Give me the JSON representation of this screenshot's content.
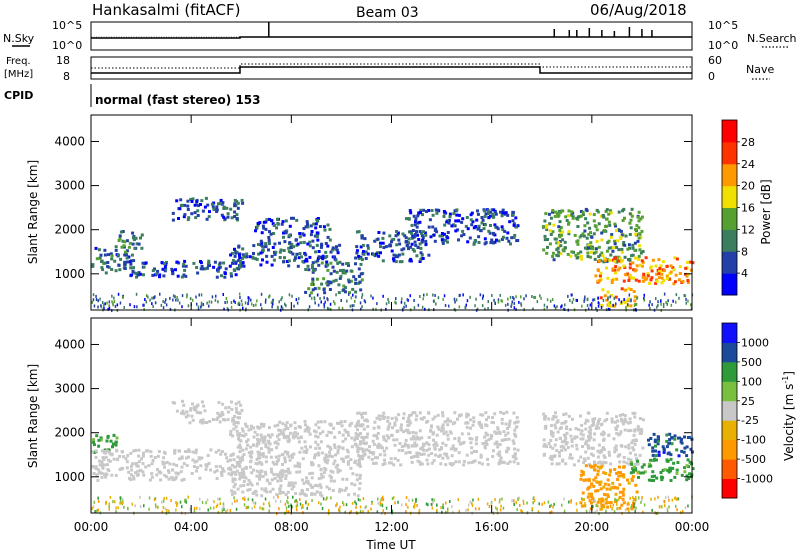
{
  "header": {
    "title": "Hankasalmi (fitACF)",
    "beam": "Beam 03",
    "date": "06/Aug/2018"
  },
  "strips": {
    "nsky_label": "N.Sky",
    "nsearch_label": "N.Search",
    "noise_ticks_left": [
      "10^5",
      "10^0"
    ],
    "noise_ticks_right": [
      "10^5",
      "10^0"
    ],
    "freq_label": "Freq.",
    "freq_unit": "[MHz]",
    "freq_ticks": [
      "18",
      "8"
    ],
    "nave_label": "Nave",
    "nave_ticks": [
      "60",
      "0"
    ],
    "cpid_label": "CPID",
    "cpid_text": "normal (fast stereo) 153"
  },
  "colors": {
    "power_scale": [
      "#0000ff",
      "#2340a8",
      "#3a7d5f",
      "#55a030",
      "#f0e000",
      "#ff9900",
      "#ff3300",
      "#ff0000"
    ],
    "velocity_scale": [
      "#ff0000",
      "#ff5a00",
      "#ff9900",
      "#e8b000",
      "#c8c8c8",
      "#7ac040",
      "#2e9a3a",
      "#1c4a9a",
      "#1010ff"
    ],
    "background": "#ffffff"
  },
  "chart_data": [
    {
      "type": "heatmap",
      "panel": "power",
      "ylabel": "Slant Range [km]",
      "yticks": [
        "1000",
        "2000",
        "3000",
        "4000"
      ],
      "ylim": [
        180,
        4600
      ],
      "xticks": [
        "00:00",
        "04:00",
        "08:00",
        "12:00",
        "16:00",
        "20:00",
        "00:00"
      ],
      "colorbar_label": "Power [dB]",
      "colorbar_ticks": [
        "4",
        "8",
        "12",
        "16",
        "20",
        "24",
        "28"
      ],
      "colorbar_range": [
        0,
        32
      ],
      "echo_bands": [
        {
          "t0": 0.0,
          "t1": 1.6,
          "r0": 1050,
          "r1": 1650,
          "val": 8
        },
        {
          "t0": 0.8,
          "t1": 2.0,
          "r0": 1600,
          "r1": 2000,
          "val": 9
        },
        {
          "t0": 1.5,
          "t1": 6.0,
          "r0": 950,
          "r1": 1350,
          "val": 7
        },
        {
          "t0": 3.2,
          "t1": 6.0,
          "r0": 2250,
          "r1": 2750,
          "val": 7
        },
        {
          "t0": 5.5,
          "t1": 10.0,
          "r0": 1200,
          "r1": 1700,
          "val": 7
        },
        {
          "t0": 6.5,
          "t1": 9.5,
          "r0": 1700,
          "r1": 2300,
          "val": 6
        },
        {
          "t0": 8.5,
          "t1": 10.8,
          "r0": 600,
          "r1": 1300,
          "val": 10
        },
        {
          "t0": 10.5,
          "t1": 13.5,
          "r0": 1300,
          "r1": 2000,
          "val": 7
        },
        {
          "t0": 12.5,
          "t1": 17.0,
          "r0": 1700,
          "r1": 2500,
          "val": 6
        },
        {
          "t0": 18.0,
          "t1": 22.0,
          "r0": 1300,
          "r1": 2500,
          "val": 12
        },
        {
          "t0": 20.0,
          "t1": 24.0,
          "r0": 800,
          "r1": 1400,
          "val": 22
        },
        {
          "t0": 20.3,
          "t1": 21.7,
          "r0": 300,
          "r1": 700,
          "val": 20
        }
      ]
    },
    {
      "type": "heatmap",
      "panel": "velocity",
      "ylabel": "Slant Range [km]",
      "yticks": [
        "1000",
        "2000",
        "3000",
        "4000"
      ],
      "ylim": [
        180,
        4600
      ],
      "xticks": [
        "00:00",
        "04:00",
        "08:00",
        "12:00",
        "16:00",
        "20:00",
        "00:00"
      ],
      "xlabel": "Time UT",
      "colorbar_label": "Velocity [m s",
      "colorbar_label_sup": "-1",
      "colorbar_label_tail": "]",
      "colorbar_ticks": [
        "-1000",
        "-500",
        "-100",
        "-25",
        "25",
        "100",
        "500",
        "1000"
      ],
      "colorbar_range": [
        -1250,
        1250
      ],
      "echo_bands": [
        {
          "t0": 0.0,
          "t1": 1.0,
          "r0": 1550,
          "r1": 2000,
          "val": 150
        },
        {
          "t0": 0.0,
          "t1": 6.0,
          "r0": 950,
          "r1": 1650,
          "val": 0
        },
        {
          "t0": 3.2,
          "t1": 6.0,
          "r0": 2250,
          "r1": 2750,
          "val": 0
        },
        {
          "t0": 5.5,
          "t1": 10.8,
          "r0": 600,
          "r1": 2300,
          "val": 0
        },
        {
          "t0": 10.5,
          "t1": 17.0,
          "r0": 1300,
          "r1": 2500,
          "val": 0
        },
        {
          "t0": 18.0,
          "t1": 22.0,
          "r0": 1300,
          "r1": 2500,
          "val": 0
        },
        {
          "t0": 19.5,
          "t1": 21.8,
          "r0": 300,
          "r1": 1300,
          "val": -150
        },
        {
          "t0": 21.5,
          "t1": 24.0,
          "r0": 950,
          "r1": 1450,
          "val": 150
        },
        {
          "t0": 22.0,
          "t1": 24.0,
          "r0": 1500,
          "r1": 2000,
          "val": 700
        }
      ]
    }
  ]
}
